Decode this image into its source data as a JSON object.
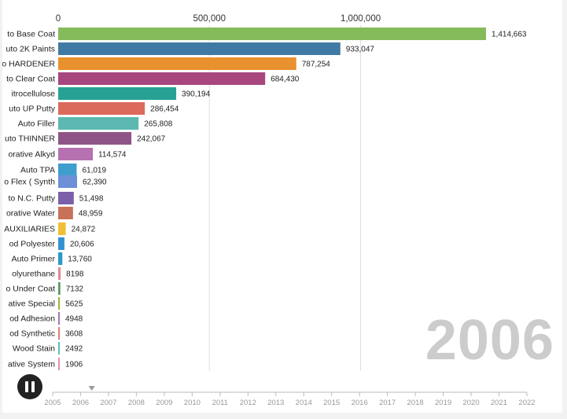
{
  "chart_data": {
    "type": "bar",
    "orientation": "horizontal",
    "title": "",
    "xlabel": "",
    "ylabel": "",
    "xlim": [
      0,
      1414663
    ],
    "x_ticks": [
      {
        "value": 0,
        "label": "0"
      },
      {
        "value": 500000,
        "label": "500,000"
      },
      {
        "value": 1000000,
        "label": "1,000,000"
      }
    ],
    "grid": true,
    "categories": [
      "to Base Coat",
      "uto 2K Paints",
      "o HARDENER",
      "to Clear Coat",
      "itrocellulose",
      "uto UP Putty",
      "Auto Filler",
      "uto THINNER",
      "orative Alkyd",
      "Auto TPA",
      "o Flex ( Synth",
      "to N.C. Putty",
      "orative Water",
      "AUXILIARIES",
      "od Polyester",
      "Auto Primer",
      "olyurethane",
      "o Under Coat",
      "ative Special",
      "od Adhesion",
      "od Synthetic",
      "Wood Stain",
      "ative System"
    ],
    "values": [
      1414663,
      933047,
      787254,
      684430,
      390194,
      286454,
      265808,
      242067,
      114574,
      61019,
      62390,
      51498,
      48959,
      24872,
      20606,
      13760,
      8198,
      7132,
      5625,
      4948,
      3608,
      2492,
      1906
    ],
    "value_labels": [
      "1,414,663",
      "933,047",
      "787,254",
      "684,430",
      "390,194",
      "286,454",
      "265,808",
      "242,067",
      "114,574",
      "61,019",
      "62,390",
      "51,498",
      "48,959",
      "24,872",
      "20,606",
      "13,760",
      "8198",
      "7132",
      "5625",
      "4948",
      "3608",
      "2492",
      "1906"
    ],
    "colors": [
      "#86bb5c",
      "#3e7aa3",
      "#e8912e",
      "#a8467f",
      "#27a194",
      "#dc6a5c",
      "#5cb8b1",
      "#8f5487",
      "#b571b0",
      "#3f9ece",
      "#6c8fd6",
      "#7b5fa8",
      "#c77258",
      "#efc035",
      "#3392d0",
      "#2b9ac8",
      "#e08a96",
      "#5a9a62",
      "#a8b04a",
      "#a07ab8",
      "#d8817a",
      "#5ac0b8",
      "#e090b4"
    ],
    "current_year": "2006",
    "years": [
      "2005",
      "2006",
      "2007",
      "2008",
      "2009",
      "2010",
      "2011",
      "2012",
      "2013",
      "2014",
      "2015",
      "2016",
      "2017",
      "2018",
      "2019",
      "2020",
      "2021",
      "2022"
    ],
    "timeline_position": "2006.4"
  },
  "controls": {
    "pause_icon": "pause-icon"
  }
}
